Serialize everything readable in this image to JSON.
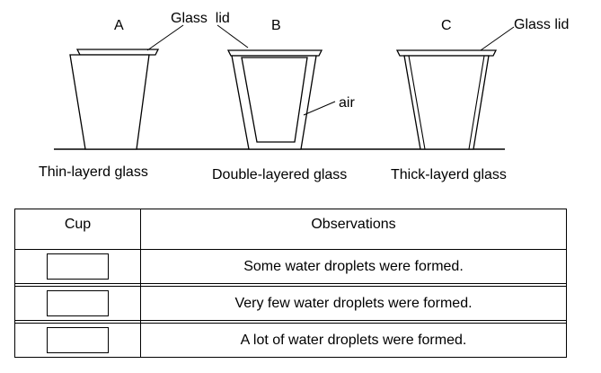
{
  "diagram": {
    "cups": [
      {
        "letter": "A",
        "caption": "Thin-layerd glass"
      },
      {
        "letter": "B",
        "caption": "Double-layered glass"
      },
      {
        "letter": "C",
        "caption": "Thick-layerd glass"
      }
    ],
    "lid_label_left": "Glass  lid",
    "lid_label_right": "Glass lid",
    "air_label": "air"
  },
  "table": {
    "headers": [
      "Cup",
      "Observations"
    ],
    "rows": [
      {
        "observation": "Some water droplets were formed."
      },
      {
        "observation": "Very few water droplets were formed."
      },
      {
        "observation": "A lot of water droplets were formed."
      }
    ]
  }
}
